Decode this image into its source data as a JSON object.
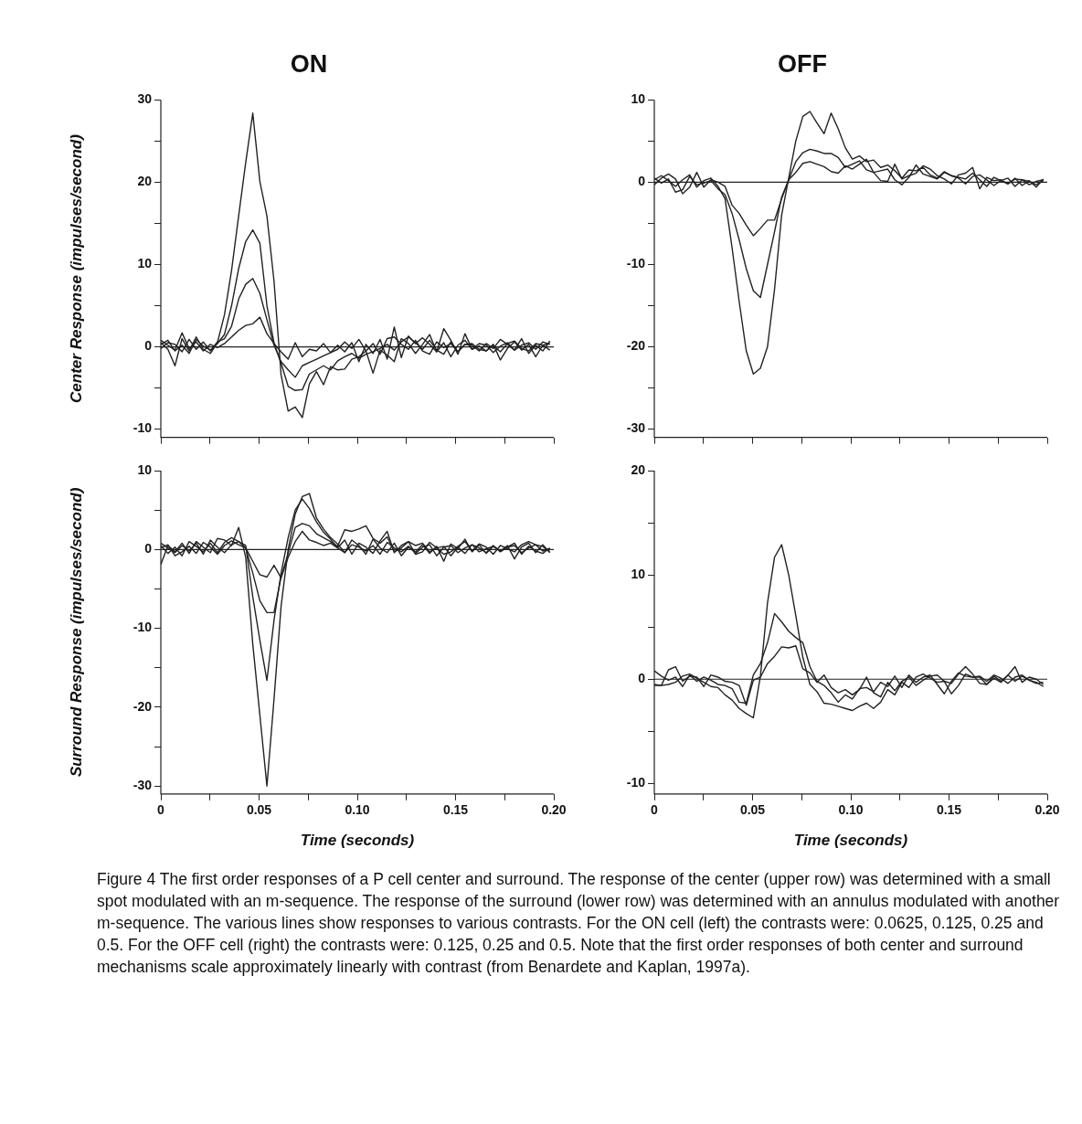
{
  "chart_data": [
    {
      "type": "line",
      "title": "ON",
      "ylabel": "Center Response (impulses/second)",
      "tick_labels": "y",
      "x": [
        0,
        0.0036,
        0.0072,
        0.0108,
        0.0144,
        0.018,
        0.0216,
        0.0252,
        0.0288,
        0.0324,
        0.036,
        0.0396,
        0.0432,
        0.0468,
        0.0504,
        0.054,
        0.0576,
        0.0612,
        0.0648,
        0.0684,
        0.072,
        0.0756,
        0.0792,
        0.0828,
        0.0864,
        0.09,
        0.0936,
        0.0972,
        0.1008,
        0.1044,
        0.108,
        0.1116,
        0.1152,
        0.1188,
        0.1224,
        0.126,
        0.1296,
        0.1332,
        0.1368,
        0.1404,
        0.144,
        0.1476,
        0.1512,
        0.1548,
        0.1584,
        0.162,
        0.1656,
        0.1692,
        0.1728,
        0.1764,
        0.18,
        0.1836,
        0.1872,
        0.1908,
        0.1944,
        0.198
      ],
      "series": [
        {
          "color": "#222222",
          "values": [
            0.5,
            -0.3,
            -2.3,
            1,
            -0.5,
            1.2,
            -0.3,
            -0.8,
            0.5,
            3.9,
            9.3,
            15.9,
            22.4,
            28.4,
            20.1,
            15.9,
            8,
            -3.4,
            -7.8,
            -7.3,
            -8.6,
            -4.5,
            -3,
            -4.6,
            -2.4,
            -2.8,
            -2.7,
            -1.5,
            -1.2,
            -0.5,
            -3.2,
            -0.4,
            -1,
            -1.8,
            1,
            0.4,
            -0.8,
            0.3,
            1.5,
            -0.6,
            0.5,
            -1.2,
            0.2,
            0.8,
            -0.3,
            0.1,
            -0.5,
            0.3,
            -1.6,
            -0.2,
            0.6,
            -0.4,
            0.3,
            -1.2,
            0.2,
            -0.4
          ]
        },
        {
          "color": "#222222",
          "values": [
            0.3,
            0.8,
            -0.5,
            0.2,
            -0.8,
            0.9,
            0.1,
            -0.4,
            0.4,
            1.5,
            5,
            9.5,
            12.8,
            14.2,
            12.6,
            5,
            0.5,
            -2,
            -4.8,
            -5.3,
            -5.2,
            -3.3,
            -2.8,
            -2.3,
            -2.8,
            -1.7,
            -1.2,
            -0.8,
            -1.4,
            -0.9,
            -0.6,
            -0.2,
            0.3,
            -0.4,
            0.6,
            1.2,
            0.5,
            -0.3,
            0.8,
            -0.4,
            -0.9,
            0.6,
            -0.6,
            0.3,
            0.2,
            -0.5,
            0.4,
            -0.2,
            0.9,
            0.3,
            -0.4,
            0.2,
            0.5,
            -0.3,
            0.6,
            0.3
          ]
        },
        {
          "color": "#222222",
          "values": [
            -0.2,
            0.5,
            0.3,
            -0.6,
            0.9,
            -0.3,
            0.6,
            -0.5,
            0.6,
            1,
            2.5,
            5.8,
            7.6,
            8.3,
            6.5,
            3.3,
            0.2,
            -1.8,
            -2.8,
            -3.7,
            -2.3,
            -1.9,
            -1.5,
            -1.1,
            -0.7,
            0.2,
            -0.6,
            0.5,
            -1.8,
            0.3,
            -0.8,
            0.9,
            -1.5,
            2.4,
            -1.3,
            1.3,
            0.4,
            1.1,
            0.3,
            -0.6,
            2.2,
            0.8,
            -0.9,
            1.6,
            -0.3,
            0.4,
            0.2,
            -0.7,
            0.1,
            0.5,
            -0.4,
            1,
            -0.8,
            0.2,
            -0.5,
            0.7
          ]
        },
        {
          "color": "#222222",
          "values": [
            0.8,
            0.2,
            -0.4,
            1.7,
            -0.2,
            0.6,
            -0.5,
            0.3,
            -0.1,
            0.4,
            1.2,
            2,
            2.6,
            2.8,
            3.6,
            1.6,
            0.4,
            -0.6,
            -1.5,
            0.5,
            -1.2,
            -0.3,
            -0.5,
            0.4,
            -0.7,
            -0.3,
            0.6,
            -0.2,
            0.9,
            -0.5,
            0.4,
            -0.9,
            1,
            1.2,
            0.3,
            -0.3,
            0.8,
            -0.5,
            -0.9,
            0.6,
            -0.1,
            0.4,
            -0.6,
            0.3,
            0.4,
            -0.3,
            -0.5,
            0.2,
            -0.6,
            0.4,
            0.7,
            -0.2,
            -0.5,
            0.4,
            0.2,
            0.4
          ]
        }
      ],
      "xlim": [
        0,
        0.2
      ],
      "xticks": [
        {
          "value": 0,
          "label": null
        },
        {
          "value": 0.025,
          "label": null
        },
        {
          "value": 0.05,
          "label": null
        },
        {
          "value": 0.075,
          "label": null
        },
        {
          "value": 0.1,
          "label": null
        },
        {
          "value": 0.125,
          "label": null
        },
        {
          "value": 0.15,
          "label": null
        },
        {
          "value": 0.175,
          "label": null
        },
        {
          "value": 0.2,
          "label": null
        }
      ],
      "ylim": [
        -11,
        30
      ],
      "yticks": [
        -10,
        {
          "value": -5,
          "label": null
        },
        0,
        {
          "value": 5,
          "label": null
        },
        10,
        {
          "value": 15,
          "label": null
        },
        20,
        {
          "value": 25,
          "label": null
        },
        30
      ],
      "ref_lines": [
        {
          "axis": "y",
          "value": 0
        }
      ],
      "annotations": [
        "Figure 4 The first order responses of a P cell center and surround.  The response of the center (upper row) was determined with a small spot modulated with an m-sequence.  The response of the surround (lower row) was determined with an annulus modulated with another m-sequence.  The various lines show responses to various contrasts.  For the ON cell (left) the contrasts were: 0.0625, 0.125, 0.25 and 0.5.  For the OFF cell (right) the contrasts were: 0.125, 0.25 and 0.5.  Note that the first order responses of both center and surround mechanisms scale approximately linearly with contrast (from Benardete and Kaplan, 1997a)."
      ]
    },
    {
      "type": "line",
      "title": "OFF",
      "tick_labels": "y",
      "x": [
        0,
        0.0036,
        0.0072,
        0.0108,
        0.0144,
        0.018,
        0.0216,
        0.0252,
        0.0288,
        0.0324,
        0.036,
        0.0396,
        0.0432,
        0.0468,
        0.0504,
        0.054,
        0.0576,
        0.0612,
        0.0648,
        0.0684,
        0.072,
        0.0756,
        0.0792,
        0.0828,
        0.0864,
        0.09,
        0.0936,
        0.0972,
        0.1008,
        0.1044,
        0.108,
        0.1116,
        0.1152,
        0.1188,
        0.1224,
        0.126,
        0.1296,
        0.1332,
        0.1368,
        0.1404,
        0.144,
        0.1476,
        0.1512,
        0.1548,
        0.1584,
        0.162,
        0.1656,
        0.1692,
        0.1728,
        0.1764,
        0.18,
        0.1836,
        0.1872,
        0.1908,
        0.1944,
        0.198
      ],
      "series": [
        {
          "color": "#222222",
          "values": [
            0.3,
            0.8,
            0.2,
            -0.5,
            0.3,
            0.9,
            -0.6,
            0.2,
            0.5,
            -0.5,
            -2,
            -8,
            -14.5,
            -20.5,
            -23.3,
            -22.6,
            -20,
            -13,
            -4,
            0.5,
            5,
            8,
            8.6,
            7.2,
            5.9,
            8.4,
            6.5,
            4.2,
            2.8,
            3.2,
            2.5,
            2.7,
            1.8,
            2.1,
            1.4,
            0.5,
            1.5,
            1.4,
            1.8,
            0.9,
            0.5,
            1.3,
            0.8,
            0.6,
            0.4,
            1.1,
            0.3,
            -0.5,
            0.6,
            0.2,
            -0.2,
            0.4,
            0.3,
            -0.3,
            0.1,
            0.3
          ]
        },
        {
          "color": "#222222",
          "values": [
            0.5,
            -0.1,
            0.4,
            -1.2,
            -0.9,
            0.7,
            -0.3,
            -0.1,
            0.2,
            -0.8,
            -1.5,
            -3.8,
            -7,
            -10.5,
            -13.2,
            -14,
            -10,
            -6,
            -1.8,
            0.3,
            2.5,
            3.6,
            4,
            3.8,
            3.5,
            3.5,
            3,
            1.8,
            2.2,
            2.6,
            1.5,
            1.2,
            1.4,
            1.6,
            0.3,
            -0.3,
            0.6,
            2.1,
            1,
            0.7,
            0.4,
            1.2,
            0.8,
            0.5,
            -0.2,
            0.7,
            0.9,
            0.3,
            -0.4,
            0.2,
            0.5,
            -0.5,
            0.3,
            0.1,
            -0.3,
            0.2
          ]
        },
        {
          "color": "#222222",
          "values": [
            -0.3,
            0.5,
            1,
            0.4,
            -1.4,
            -0.6,
            1.2,
            -0.6,
            0.3,
            0,
            -0.5,
            -2.8,
            -3.8,
            -5.2,
            -6.5,
            -5.6,
            -4.6,
            -4.6,
            -2,
            0.3,
            1.2,
            2.3,
            2.5,
            2.2,
            1.9,
            1.3,
            1.1,
            2,
            1.6,
            2.2,
            2.8,
            1.2,
            0.2,
            0.1,
            2.2,
            0.4,
            0.8,
            1.1,
            2,
            1.6,
            0.8,
            0.4,
            -0.2,
            0.9,
            1.1,
            1.8,
            -0.8,
            0.6,
            0.2,
            0.3,
            -0.2,
            0.5,
            -0.4,
            0.2,
            -0.6,
            0.4
          ]
        }
      ],
      "xlim": [
        0,
        0.2
      ],
      "xticks": [
        {
          "value": 0,
          "label": null
        },
        {
          "value": 0.025,
          "label": null
        },
        {
          "value": 0.05,
          "label": null
        },
        {
          "value": 0.075,
          "label": null
        },
        {
          "value": 0.1,
          "label": null
        },
        {
          "value": 0.125,
          "label": null
        },
        {
          "value": 0.15,
          "label": null
        },
        {
          "value": 0.175,
          "label": null
        },
        {
          "value": 0.2,
          "label": null
        }
      ],
      "ylim": [
        -31,
        10
      ],
      "yticks": [
        -30,
        {
          "value": -25,
          "label": null
        },
        -20,
        {
          "value": -15,
          "label": null
        },
        -10,
        {
          "value": -5,
          "label": null
        },
        0,
        {
          "value": 5,
          "label": null
        },
        10
      ],
      "ref_lines": [
        {
          "axis": "y",
          "value": 0
        }
      ]
    },
    {
      "type": "line",
      "ylabel": "Surround Response (impulses/second)",
      "xlabel": "Time (seconds)",
      "x": [
        0,
        0.0036,
        0.0072,
        0.0108,
        0.0144,
        0.018,
        0.0216,
        0.0252,
        0.0288,
        0.0324,
        0.036,
        0.0396,
        0.0432,
        0.0468,
        0.0504,
        0.054,
        0.0576,
        0.0612,
        0.0648,
        0.0684,
        0.072,
        0.0756,
        0.0792,
        0.0828,
        0.0864,
        0.09,
        0.0936,
        0.0972,
        0.1008,
        0.1044,
        0.108,
        0.1116,
        0.1152,
        0.1188,
        0.1224,
        0.126,
        0.1296,
        0.1332,
        0.1368,
        0.1404,
        0.144,
        0.1476,
        0.1512,
        0.1548,
        0.1584,
        0.162,
        0.1656,
        0.1692,
        0.1728,
        0.1764,
        0.18,
        0.1836,
        0.1872,
        0.1908,
        0.1944,
        0.198
      ],
      "series": [
        {
          "color": "#222222",
          "values": [
            -1.9,
            0.5,
            -0.3,
            0.8,
            -0.5,
            1,
            0.3,
            -0.4,
            1.4,
            1.2,
            0.5,
            2.8,
            -1,
            -12,
            -21,
            -30,
            -19,
            -7.2,
            0,
            4.5,
            6.7,
            7.1,
            4,
            2.6,
            1.5,
            0.7,
            -0.4,
            1.2,
            0.5,
            -0.6,
            1.3,
            0.2,
            -0.4,
            0.8,
            -0.8,
            0.3,
            -0.3,
            0.6,
            -0.5,
            0.4,
            -1.5,
            0.7,
            0.1,
            1.3,
            -0.3,
            0.6,
            -0.5,
            0.4,
            -0.2,
            0.5,
            -1.2,
            0.3,
            0.8,
            -0.4,
            0.6,
            -0.4
          ]
        },
        {
          "color": "#222222",
          "values": [
            0.5,
            -0.5,
            0.3,
            -0.8,
            1,
            0.4,
            -0.3,
            0.8,
            -0.4,
            0.9,
            1.5,
            1,
            0.5,
            -6,
            -11.5,
            -16.6,
            -9,
            -3,
            1.5,
            5,
            6.4,
            5.2,
            3.5,
            2.2,
            1.3,
            0.2,
            1.2,
            -0.6,
            0.8,
            0.3,
            -0.5,
            1.1,
            2.3,
            -0.4,
            0.5,
            1,
            -0.6,
            -0.3,
            0.9,
            0.2,
            0.4,
            -0.8,
            0.3,
            -0.5,
            0.6,
            0.2,
            -0.4,
            0.5,
            -0.3,
            0.3,
            0.8,
            -0.6,
            0.4,
            -0.2,
            -0.5,
            0.2
          ]
        },
        {
          "color": "#222222",
          "values": [
            0.8,
            0.2,
            -0.4,
            0.5,
            -0.2,
            0.8,
            -0.6,
            1.2,
            0.3,
            -0.4,
            0.6,
            1,
            0.2,
            -3,
            -6.5,
            -8,
            -8,
            -3.5,
            -0.5,
            2.8,
            3.3,
            3,
            2,
            1.5,
            1,
            0.4,
            2.5,
            2.3,
            2.6,
            3,
            1.4,
            0.8,
            1.6,
            -0.3,
            0.2,
            1,
            0.5,
            0.8,
            -0.3,
            0.2,
            -0.6,
            -0.3,
            0.4,
            1,
            -0.2,
            0.7,
            0.3,
            -0.6,
            0.5,
            0.1,
            -0.3,
            0.6,
            1,
            0.6,
            0.4,
            -0.3
          ]
        },
        {
          "color": "#222222",
          "values": [
            0.2,
            0.6,
            -0.8,
            -0.3,
            0.4,
            -0.5,
            0.9,
            0.3,
            -0.6,
            0.5,
            1.1,
            0.6,
            0.2,
            -1.5,
            -3.2,
            -3.5,
            -2,
            -3.6,
            -1,
            1,
            2.3,
            1.2,
            0.9,
            0.5,
            0.8,
            0.2,
            -0.4,
            0.6,
            0.3,
            -0.2,
            0.5,
            -0.6,
            0.9,
            0.2,
            -0.3,
            0.4,
            -0.5,
            0.3,
            0.6,
            -0.8,
            0.3,
            0.5,
            -0.4,
            0.2,
            0.6,
            -0.3,
            0.1,
            0.4,
            -0.2,
            0.3,
            0.5,
            -0.4,
            0.2,
            0.6,
            -0.2,
            0.1
          ]
        }
      ],
      "xlim": [
        0,
        0.2
      ],
      "xticks": [
        0,
        {
          "value": 0.025,
          "label": null
        },
        0.05,
        {
          "value": 0.075,
          "label": null
        },
        {
          "value": 0.1,
          "label": "0.10"
        },
        {
          "value": 0.125,
          "label": null
        },
        0.15,
        {
          "value": 0.175,
          "label": null
        },
        {
          "value": 0.2,
          "label": "0.20"
        }
      ],
      "ylim": [
        -31,
        10
      ],
      "yticks": [
        -30,
        {
          "value": -25,
          "label": null
        },
        -20,
        {
          "value": -15,
          "label": null
        },
        -10,
        {
          "value": -5,
          "label": null
        },
        0,
        {
          "value": 5,
          "label": null
        },
        10
      ],
      "ref_lines": [
        {
          "axis": "y",
          "value": 0
        }
      ]
    },
    {
      "type": "line",
      "xlabel": "Time (seconds)",
      "x": [
        0,
        0.0036,
        0.0072,
        0.0108,
        0.0144,
        0.018,
        0.0216,
        0.0252,
        0.0288,
        0.0324,
        0.036,
        0.0396,
        0.0432,
        0.0468,
        0.0504,
        0.054,
        0.0576,
        0.0612,
        0.0648,
        0.0684,
        0.072,
        0.0756,
        0.0792,
        0.0828,
        0.0864,
        0.09,
        0.0936,
        0.0972,
        0.1008,
        0.1044,
        0.108,
        0.1116,
        0.1152,
        0.1188,
        0.1224,
        0.126,
        0.1296,
        0.1332,
        0.1368,
        0.1404,
        0.144,
        0.1476,
        0.1512,
        0.1548,
        0.1584,
        0.162,
        0.1656,
        0.1692,
        0.1728,
        0.1764,
        0.18,
        0.1836,
        0.1872,
        0.1908,
        0.1944,
        0.198
      ],
      "series": [
        {
          "color": "#222222",
          "values": [
            -0.5,
            -0.6,
            -0.5,
            -0.3,
            0.3,
            0.5,
            0.1,
            -0.3,
            -0.7,
            -0.8,
            -1.5,
            -2,
            -2.8,
            -3.3,
            -3.7,
            0.3,
            7.3,
            11.7,
            12.9,
            10,
            6.1,
            2.1,
            -0.5,
            -1.2,
            -2.3,
            -2.4,
            -2.6,
            -2.8,
            -3,
            -2.6,
            -2.3,
            -2.8,
            -2.2,
            -1,
            -1.5,
            -0.3,
            -0.8,
            0.2,
            0.5,
            0.1,
            -0.3,
            -0.2,
            -1.4,
            -0.6,
            0.5,
            0.2,
            0.3,
            -0.2,
            0.4,
            0.1,
            -0.4,
            0.2,
            0.4,
            -0.1,
            -0.3,
            -0.7
          ]
        },
        {
          "color": "#222222",
          "values": [
            0.8,
            0.3,
            -0.1,
            0.2,
            -0.7,
            0.4,
            -0.2,
            0.2,
            -0.1,
            -0.5,
            -0.6,
            -0.9,
            -2.2,
            -2.3,
            0.4,
            1.5,
            3.5,
            6.3,
            5.5,
            4.6,
            4,
            3.5,
            1.2,
            -0.2,
            -0.6,
            -1.3,
            -2.2,
            -1.5,
            -1.9,
            -0.9,
            -0.8,
            -1.2,
            -0.3,
            -0.7,
            0.3,
            -0.8,
            0.4,
            -0.3,
            0.2,
            0.4,
            -0.5,
            -1.4,
            -0.2,
            0.6,
            0.3,
            0.2,
            0.2,
            -0.5,
            0.1,
            -0.3,
            0.4,
            -0.2,
            0.3,
            -0.1,
            -0.4,
            -0.3
          ]
        },
        {
          "color": "#222222",
          "values": [
            -0.6,
            -0.6,
            0.9,
            1.2,
            -0.2,
            0.3,
            0.2,
            -0.7,
            0.4,
            0.2,
            -0.2,
            -0.3,
            -0.6,
            -2.5,
            -0.1,
            0.2,
            1.5,
            2.2,
            3.1,
            3,
            3.2,
            1,
            0.6,
            -0.3,
            0.4,
            -0.8,
            -1.3,
            -1,
            -1.5,
            -1,
            0.2,
            -1.3,
            -1.7,
            -0.3,
            -1.1,
            -0.2,
            0.2,
            -0.6,
            -0.1,
            0.3,
            0.4,
            -0.2,
            -0.4,
            0.5,
            1.2,
            0.5,
            -0.4,
            -0.5,
            0.3,
            -0.2,
            0.4,
            1.2,
            -0.3,
            0.2,
            0,
            -0.5
          ]
        }
      ],
      "xlim": [
        0,
        0.2
      ],
      "xticks": [
        0,
        {
          "value": 0.025,
          "label": null
        },
        0.05,
        {
          "value": 0.075,
          "label": null
        },
        {
          "value": 0.1,
          "label": "0.10"
        },
        {
          "value": 0.125,
          "label": null
        },
        0.15,
        {
          "value": 0.175,
          "label": null
        },
        {
          "value": 0.2,
          "label": "0.20"
        }
      ],
      "ylim": [
        -11,
        20
      ],
      "yticks": [
        -10,
        {
          "value": -5,
          "label": null
        },
        0,
        {
          "value": 5,
          "label": null
        },
        10,
        {
          "value": 15,
          "label": null
        },
        20
      ],
      "ref_lines": [
        {
          "axis": "y",
          "value": 0
        }
      ]
    }
  ]
}
